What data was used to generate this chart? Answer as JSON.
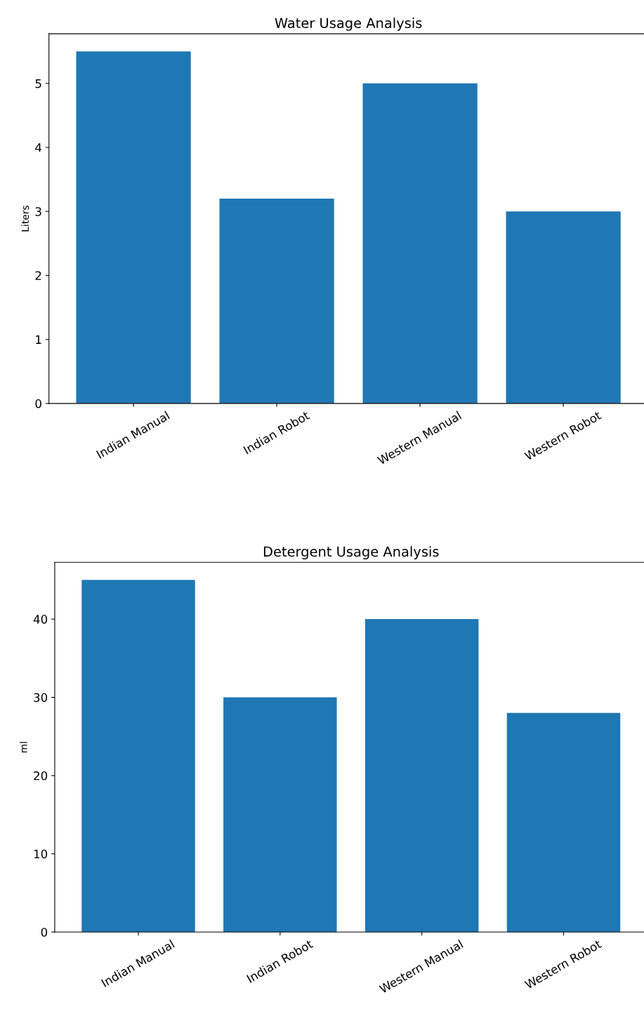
{
  "chart_data": [
    {
      "type": "bar",
      "title": "Water Usage Analysis",
      "ylabel": "Liters",
      "categories": [
        "Indian Manual",
        "Indian Robot",
        "Western Manual",
        "Western Robot"
      ],
      "values": [
        5.5,
        3.2,
        5.0,
        3.0
      ],
      "color": "#1f77b4",
      "ylim": [
        0,
        5.775
      ],
      "yticks": [
        0,
        1,
        2,
        3,
        4,
        5
      ]
    },
    {
      "type": "bar",
      "title": "Detergent Usage Analysis",
      "ylabel": "ml",
      "categories": [
        "Indian Manual",
        "Indian Robot",
        "Western Manual",
        "Western Robot"
      ],
      "values": [
        45,
        30,
        40,
        28
      ],
      "color": "#1f77b4",
      "ylim": [
        0,
        47.25
      ],
      "yticks": [
        0,
        10,
        20,
        30,
        40
      ]
    }
  ]
}
